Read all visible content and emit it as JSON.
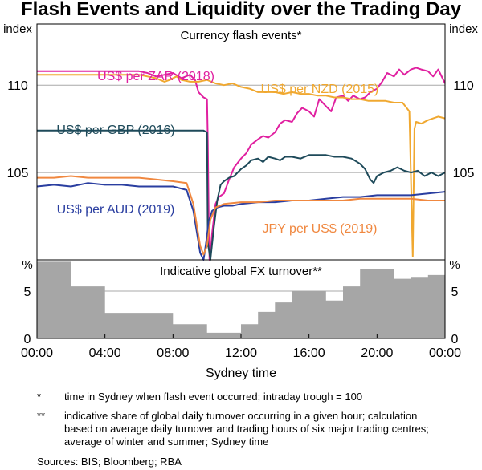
{
  "title": "Flash Events and Liquidity over the Trading Day",
  "colors": {
    "zar": "#e020a0",
    "nzd": "#f0a830",
    "gbp": "#1e4a5a",
    "aud": "#2a3ea0",
    "jpy": "#f08840",
    "grid": "#a8a8a8",
    "area": "#a6a6a6"
  },
  "chart_data": [
    {
      "type": "line",
      "panel_title": "Currency flash events*",
      "ylabel_left": "index",
      "ylabel_right": "index",
      "ylim": [
        100,
        113.5
      ],
      "yticks": [
        105,
        110
      ],
      "ytick_labels": [
        "105",
        "110"
      ],
      "xlim": [
        0,
        24
      ],
      "series": [
        {
          "name": "US$ per ZAR (2018)",
          "color_key": "zar",
          "points": [
            [
              0,
              110.8
            ],
            [
              0.5,
              110.8
            ],
            [
              1,
              110.8
            ],
            [
              1.5,
              110.8
            ],
            [
              2,
              110.8
            ],
            [
              2.5,
              110.8
            ],
            [
              3,
              110.8
            ],
            [
              3.5,
              110.8
            ],
            [
              4,
              110.8
            ],
            [
              4.5,
              110.8
            ],
            [
              5,
              110.8
            ],
            [
              5.5,
              110.8
            ],
            [
              6,
              110.8
            ],
            [
              6.5,
              110.7
            ],
            [
              7,
              110.5
            ],
            [
              7.5,
              110.6
            ],
            [
              8,
              110.7
            ],
            [
              8.5,
              110.4
            ],
            [
              9,
              110.6
            ],
            [
              9.3,
              110.3
            ],
            [
              9.5,
              109.6
            ],
            [
              9.8,
              109.3
            ],
            [
              10,
              109.2
            ],
            [
              10.05,
              106.8
            ],
            [
              10.1,
              102.5
            ],
            [
              10.15,
              100
            ],
            [
              10.2,
              100.3
            ],
            [
              10.3,
              101.5
            ],
            [
              10.5,
              103.2
            ],
            [
              10.7,
              103.6
            ],
            [
              11,
              103.8
            ],
            [
              11.3,
              104.6
            ],
            [
              11.6,
              105.3
            ],
            [
              12,
              105.8
            ],
            [
              12.3,
              106.1
            ],
            [
              12.6,
              106.6
            ],
            [
              13,
              106.9
            ],
            [
              13.3,
              107.1
            ],
            [
              13.6,
              107.0
            ],
            [
              14,
              107.3
            ],
            [
              14.3,
              107.8
            ],
            [
              14.6,
              108.0
            ],
            [
              15,
              107.9
            ],
            [
              15.3,
              108.4
            ],
            [
              15.6,
              108.7
            ],
            [
              16,
              108.5
            ],
            [
              16.3,
              108.2
            ],
            [
              16.6,
              109.2
            ],
            [
              17,
              108.8
            ],
            [
              17.3,
              108.5
            ],
            [
              17.6,
              109.3
            ],
            [
              18,
              109.4
            ],
            [
              18.3,
              109.1
            ],
            [
              18.6,
              109.4
            ],
            [
              19,
              109.2
            ],
            [
              19.3,
              109.3
            ],
            [
              19.6,
              109.6
            ],
            [
              20,
              109.8
            ],
            [
              20.3,
              110.2
            ],
            [
              20.6,
              110.7
            ],
            [
              21,
              110.5
            ],
            [
              21.3,
              110.9
            ],
            [
              21.6,
              110.6
            ],
            [
              22,
              110.9
            ],
            [
              22.3,
              111.0
            ],
            [
              22.6,
              110.9
            ],
            [
              23,
              110.8
            ],
            [
              23.3,
              110.5
            ],
            [
              23.6,
              110.9
            ],
            [
              24,
              110.1
            ]
          ]
        },
        {
          "name": "US$ per NZD (2015)",
          "color_key": "nzd",
          "points": [
            [
              0,
              110.6
            ],
            [
              1,
              110.6
            ],
            [
              2,
              110.6
            ],
            [
              3,
              110.6
            ],
            [
              4,
              110.6
            ],
            [
              5,
              110.6
            ],
            [
              6,
              110.6
            ],
            [
              6.5,
              110.5
            ],
            [
              7,
              110.4
            ],
            [
              7.5,
              110.2
            ],
            [
              7.8,
              110.3
            ],
            [
              8.2,
              110.5
            ],
            [
              8.5,
              110.3
            ],
            [
              9,
              110.2
            ],
            [
              9.5,
              110.2
            ],
            [
              10,
              110.3
            ],
            [
              10.5,
              110.1
            ],
            [
              11,
              110.0
            ],
            [
              11.5,
              110.1
            ],
            [
              12,
              109.9
            ],
            [
              12.5,
              109.8
            ],
            [
              13,
              109.6
            ],
            [
              13.5,
              109.6
            ],
            [
              14,
              109.6
            ],
            [
              14.5,
              109.5
            ],
            [
              15,
              109.6
            ],
            [
              15.5,
              109.5
            ],
            [
              16,
              109.5
            ],
            [
              16.5,
              109.4
            ],
            [
              17,
              109.4
            ],
            [
              17.5,
              109.3
            ],
            [
              18,
              109.3
            ],
            [
              18.5,
              109.2
            ],
            [
              19,
              109.2
            ],
            [
              19.5,
              109.1
            ],
            [
              20,
              109.1
            ],
            [
              20.5,
              109.1
            ],
            [
              21,
              109.0
            ],
            [
              21.5,
              109.0
            ],
            [
              21.9,
              108.5
            ],
            [
              22.1,
              100.2
            ],
            [
              22.2,
              107.5
            ],
            [
              22.3,
              107.9
            ],
            [
              22.6,
              107.8
            ],
            [
              23,
              108.0
            ],
            [
              23.3,
              108.1
            ],
            [
              23.6,
              108.2
            ],
            [
              24,
              108.1
            ]
          ]
        },
        {
          "name": "US$ per GBP (2016)",
          "color_key": "gbp",
          "points": [
            [
              0,
              107.4
            ],
            [
              1,
              107.4
            ],
            [
              2,
              107.4
            ],
            [
              3,
              107.4
            ],
            [
              4,
              107.4
            ],
            [
              5,
              107.4
            ],
            [
              6,
              107.4
            ],
            [
              7,
              107.4
            ],
            [
              8,
              107.4
            ],
            [
              9,
              107.4
            ],
            [
              9.8,
              107.4
            ],
            [
              10.0,
              107.3
            ],
            [
              10.05,
              101
            ],
            [
              10.2,
              100
            ],
            [
              10.4,
              101.8
            ],
            [
              10.6,
              103.4
            ],
            [
              10.8,
              104.3
            ],
            [
              11,
              104.5
            ],
            [
              11.3,
              104.7
            ],
            [
              11.6,
              104.8
            ],
            [
              12,
              105.2
            ],
            [
              12.3,
              105.4
            ],
            [
              12.6,
              105.7
            ],
            [
              13,
              105.8
            ],
            [
              13.3,
              105.6
            ],
            [
              13.6,
              105.9
            ],
            [
              14,
              105.8
            ],
            [
              14.3,
              105.7
            ],
            [
              14.6,
              105.9
            ],
            [
              15,
              105.9
            ],
            [
              15.5,
              105.8
            ],
            [
              16,
              106.0
            ],
            [
              16.5,
              106.0
            ],
            [
              17,
              106.0
            ],
            [
              17.5,
              105.9
            ],
            [
              18,
              105.9
            ],
            [
              18.5,
              105.8
            ],
            [
              19,
              105.5
            ],
            [
              19.3,
              105.2
            ],
            [
              19.6,
              104.6
            ],
            [
              19.8,
              104.4
            ],
            [
              20,
              104.8
            ],
            [
              20.4,
              105.0
            ],
            [
              20.8,
              105.1
            ],
            [
              21.2,
              105.3
            ],
            [
              21.6,
              105.1
            ],
            [
              22,
              105.0
            ],
            [
              22.4,
              105.1
            ],
            [
              22.8,
              104.8
            ],
            [
              23.2,
              105.0
            ],
            [
              23.6,
              104.8
            ],
            [
              24,
              105.0
            ]
          ]
        },
        {
          "name": "US$ per AUD (2019)",
          "color_key": "aud",
          "points": [
            [
              0,
              104.2
            ],
            [
              1,
              104.3
            ],
            [
              2,
              104.2
            ],
            [
              3,
              104.4
            ],
            [
              4,
              104.3
            ],
            [
              5,
              104.3
            ],
            [
              6,
              104.2
            ],
            [
              7,
              104.2
            ],
            [
              8,
              104.2
            ],
            [
              8.8,
              104.0
            ],
            [
              9.2,
              102.8
            ],
            [
              9.6,
              100.4
            ],
            [
              9.8,
              100
            ],
            [
              9.95,
              101
            ],
            [
              10.1,
              102.2
            ],
            [
              10.3,
              102.8
            ],
            [
              10.6,
              103.0
            ],
            [
              11,
              103.1
            ],
            [
              11.5,
              103.1
            ],
            [
              12,
              103.2
            ],
            [
              13,
              103.3
            ],
            [
              14,
              103.3
            ],
            [
              15,
              103.4
            ],
            [
              16,
              103.4
            ],
            [
              17,
              103.5
            ],
            [
              18,
              103.6
            ],
            [
              19,
              103.6
            ],
            [
              20,
              103.7
            ],
            [
              21,
              103.7
            ],
            [
              22,
              103.7
            ],
            [
              23,
              103.8
            ],
            [
              24,
              103.9
            ]
          ]
        },
        {
          "name": "JPY per US$ (2019)",
          "color_key": "jpy",
          "points": [
            [
              0,
              104.7
            ],
            [
              1,
              104.7
            ],
            [
              2,
              104.8
            ],
            [
              3,
              104.7
            ],
            [
              4,
              104.7
            ],
            [
              5,
              104.7
            ],
            [
              6,
              104.7
            ],
            [
              7,
              104.6
            ],
            [
              8,
              104.5
            ],
            [
              8.8,
              104.4
            ],
            [
              9.2,
              103.2
            ],
            [
              9.6,
              100.8
            ],
            [
              9.8,
              100.3
            ],
            [
              10.0,
              100.8
            ],
            [
              10.2,
              102.3
            ],
            [
              10.5,
              103.0
            ],
            [
              11,
              103.2
            ],
            [
              12,
              103.3
            ],
            [
              13,
              103.3
            ],
            [
              14,
              103.4
            ],
            [
              15,
              103.4
            ],
            [
              16,
              103.4
            ],
            [
              17,
              103.4
            ],
            [
              18,
              103.4
            ],
            [
              19,
              103.5
            ],
            [
              20,
              103.5
            ],
            [
              21,
              103.5
            ],
            [
              22,
              103.5
            ],
            [
              23,
              103.4
            ],
            [
              24,
              103.4
            ]
          ]
        }
      ],
      "annotations": [
        {
          "text": "US$ per ZAR (2018)",
          "color_key": "zar"
        },
        {
          "text": "US$ per NZD (2015)",
          "color_key": "nzd"
        },
        {
          "text": "US$ per GBP (2016)",
          "color_key": "gbp"
        },
        {
          "text": "US$ per AUD (2019)",
          "color_key": "aud"
        },
        {
          "text": "JPY per US$ (2019)",
          "color_key": "jpy"
        }
      ]
    },
    {
      "type": "area",
      "panel_title": "Indicative global FX turnover**",
      "ylabel_left": "%",
      "ylabel_right": "%",
      "ylim": [
        0,
        8.3
      ],
      "yticks": [
        0,
        5
      ],
      "ytick_labels": [
        "0",
        "5"
      ],
      "xlim": [
        0,
        24
      ],
      "hourly_values": [
        8.1,
        8.1,
        5.5,
        5.5,
        2.7,
        2.7,
        2.7,
        2.7,
        1.5,
        1.5,
        0.6,
        0.6,
        1.5,
        2.8,
        3.8,
        5.0,
        5.0,
        4.0,
        5.5,
        7.3,
        7.3,
        6.3,
        6.5,
        6.7
      ],
      "xticks": [
        0,
        4,
        8,
        12,
        16,
        20,
        24
      ],
      "xtick_labels": [
        "00:00",
        "04:00",
        "08:00",
        "12:00",
        "16:00",
        "20:00",
        "00:00"
      ],
      "xlabel": "Sydney time"
    }
  ],
  "notes": [
    {
      "marker": "*",
      "text": "time in Sydney when flash event occurred; intraday trough = 100"
    },
    {
      "marker": "**",
      "text": "indicative share of global daily turnover occurring in a given hour; calculation based on average daily turnover and trading hours of six major trading centres; average of winter and summer; Sydney time"
    }
  ],
  "sources": "Sources: BIS; Bloomberg; RBA"
}
